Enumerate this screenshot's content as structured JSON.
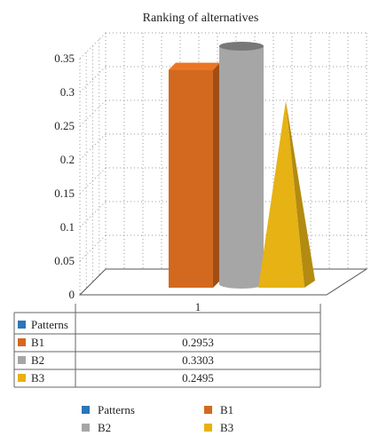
{
  "chart_data": {
    "type": "bar",
    "title": "Ranking of alternatives",
    "categories": [
      "1"
    ],
    "ylim": [
      0,
      0.35
    ],
    "yticks": [
      "0",
      "0.05",
      "0.1",
      "0.15",
      "0.2",
      "0.25",
      "0.3",
      "0.35"
    ],
    "grid": true,
    "legend_position": "bottom",
    "data_table": true,
    "series": [
      {
        "name": "Patterns",
        "values": [
          null
        ],
        "display": "",
        "color": "#2e75b6",
        "shape": "none"
      },
      {
        "name": "B1",
        "values": [
          0.2953
        ],
        "display": "0.2953",
        "color": "#d2691e",
        "shape": "box"
      },
      {
        "name": "B2",
        "values": [
          0.3303
        ],
        "display": "0.3303",
        "color": "#a6a6a6",
        "shape": "cylinder"
      },
      {
        "name": "B3",
        "values": [
          0.2495
        ],
        "display": "0.2495",
        "color": "#e6b214",
        "shape": "pyramid"
      }
    ]
  }
}
